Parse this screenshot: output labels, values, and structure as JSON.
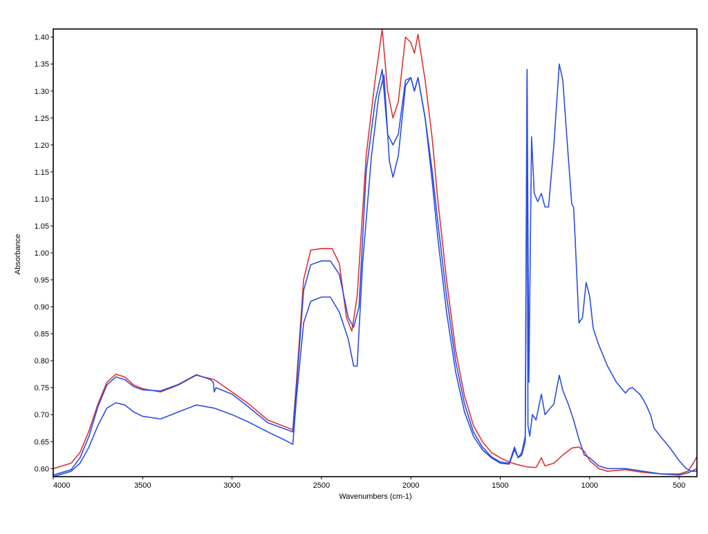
{
  "chart_data": {
    "type": "line",
    "xlabel": "Wavenumbers (cm-1)",
    "ylabel": "Absorbance",
    "xlim": [
      4000,
      400
    ],
    "ylim": [
      0.585,
      1.415
    ],
    "x_reversed": true,
    "x_ticks": [
      4000,
      3500,
      3000,
      2500,
      2000,
      1500,
      1000,
      500
    ],
    "y_ticks": [
      0.6,
      0.65,
      0.7,
      0.75,
      0.8,
      0.85,
      0.9,
      0.95,
      1.0,
      1.05,
      1.1,
      1.15,
      1.2,
      1.25,
      1.3,
      1.35,
      1.4
    ],
    "x_tick_labels": [
      "4000",
      "3500",
      "3000",
      "2500",
      "2000",
      "1500",
      "1000",
      "500"
    ],
    "y_tick_labels": [
      "0.60",
      "0.65",
      "0.70",
      "0.75",
      "0.80",
      "0.85",
      "0.90",
      "0.95",
      "1.00",
      "1.05",
      "1.10",
      "1.15",
      "1.20",
      "1.25",
      "1.30",
      "1.35",
      "1.40"
    ],
    "grid": false,
    "legend": "none",
    "series": [
      {
        "color": "#e03030",
        "points": [
          [
            4000,
            0.6
          ],
          [
            3900,
            0.61
          ],
          [
            3850,
            0.63
          ],
          [
            3800,
            0.67
          ],
          [
            3750,
            0.72
          ],
          [
            3700,
            0.76
          ],
          [
            3650,
            0.775
          ],
          [
            3600,
            0.77
          ],
          [
            3550,
            0.755
          ],
          [
            3500,
            0.748
          ],
          [
            3400,
            0.742
          ],
          [
            3300,
            0.755
          ],
          [
            3200,
            0.773
          ],
          [
            3100,
            0.765
          ],
          [
            3000,
            0.742
          ],
          [
            2900,
            0.718
          ],
          [
            2800,
            0.69
          ],
          [
            2660,
            0.672
          ],
          [
            2640,
            0.76
          ],
          [
            2600,
            0.95
          ],
          [
            2560,
            1.005
          ],
          [
            2500,
            1.008
          ],
          [
            2440,
            1.008
          ],
          [
            2400,
            0.98
          ],
          [
            2360,
            0.88
          ],
          [
            2330,
            0.855
          ],
          [
            2300,
            0.92
          ],
          [
            2250,
            1.18
          ],
          [
            2200,
            1.32
          ],
          [
            2160,
            1.415
          ],
          [
            2130,
            1.3
          ],
          [
            2100,
            1.25
          ],
          [
            2070,
            1.28
          ],
          [
            2030,
            1.4
          ],
          [
            2000,
            1.39
          ],
          [
            1980,
            1.37
          ],
          [
            1960,
            1.405
          ],
          [
            1920,
            1.32
          ],
          [
            1880,
            1.21
          ],
          [
            1850,
            1.1
          ],
          [
            1800,
            0.95
          ],
          [
            1750,
            0.82
          ],
          [
            1700,
            0.735
          ],
          [
            1650,
            0.68
          ],
          [
            1600,
            0.65
          ],
          [
            1550,
            0.63
          ],
          [
            1500,
            0.62
          ],
          [
            1450,
            0.612
          ],
          [
            1400,
            0.607
          ],
          [
            1350,
            0.603
          ],
          [
            1300,
            0.602
          ],
          [
            1270,
            0.62
          ],
          [
            1250,
            0.605
          ],
          [
            1200,
            0.61
          ],
          [
            1150,
            0.625
          ],
          [
            1100,
            0.638
          ],
          [
            1060,
            0.64
          ],
          [
            1030,
            0.632
          ],
          [
            1000,
            0.615
          ],
          [
            950,
            0.6
          ],
          [
            900,
            0.595
          ],
          [
            800,
            0.598
          ],
          [
            700,
            0.593
          ],
          [
            600,
            0.59
          ],
          [
            500,
            0.59
          ],
          [
            450,
            0.595
          ],
          [
            420,
            0.61
          ],
          [
            400,
            0.622
          ]
        ]
      },
      {
        "color": "#2b4ce0",
        "points": [
          [
            4000,
            0.588
          ],
          [
            3900,
            0.598
          ],
          [
            3850,
            0.62
          ],
          [
            3800,
            0.66
          ],
          [
            3750,
            0.715
          ],
          [
            3700,
            0.755
          ],
          [
            3650,
            0.77
          ],
          [
            3600,
            0.765
          ],
          [
            3550,
            0.752
          ],
          [
            3500,
            0.746
          ],
          [
            3400,
            0.744
          ],
          [
            3300,
            0.756
          ],
          [
            3200,
            0.774
          ],
          [
            3120,
            0.765
          ],
          [
            3105,
            0.76
          ],
          [
            3100,
            0.742
          ],
          [
            3090,
            0.75
          ],
          [
            3000,
            0.738
          ],
          [
            2900,
            0.712
          ],
          [
            2800,
            0.685
          ],
          [
            2660,
            0.668
          ],
          [
            2640,
            0.75
          ],
          [
            2600,
            0.93
          ],
          [
            2560,
            0.978
          ],
          [
            2500,
            0.985
          ],
          [
            2450,
            0.985
          ],
          [
            2400,
            0.96
          ],
          [
            2350,
            0.88
          ],
          [
            2320,
            0.862
          ],
          [
            2290,
            0.9
          ],
          [
            2250,
            1.15
          ],
          [
            2200,
            1.28
          ],
          [
            2160,
            1.34
          ],
          [
            2130,
            1.22
          ],
          [
            2100,
            1.2
          ],
          [
            2070,
            1.22
          ],
          [
            2030,
            1.32
          ],
          [
            2000,
            1.325
          ],
          [
            1980,
            1.3
          ],
          [
            1960,
            1.325
          ],
          [
            1920,
            1.25
          ],
          [
            1880,
            1.15
          ],
          [
            1850,
            1.06
          ],
          [
            1800,
            0.92
          ],
          [
            1750,
            0.8
          ],
          [
            1700,
            0.72
          ],
          [
            1650,
            0.668
          ],
          [
            1600,
            0.64
          ],
          [
            1550,
            0.622
          ],
          [
            1500,
            0.612
          ],
          [
            1450,
            0.61
          ],
          [
            1420,
            0.64
          ],
          [
            1400,
            0.62
          ],
          [
            1380,
            0.625
          ],
          [
            1360,
            0.65
          ],
          [
            1350,
            1.34
          ],
          [
            1345,
            0.68
          ],
          [
            1335,
            0.66
          ],
          [
            1320,
            0.7
          ],
          [
            1300,
            0.69
          ],
          [
            1270,
            0.738
          ],
          [
            1250,
            0.7
          ],
          [
            1200,
            0.72
          ],
          [
            1170,
            0.773
          ],
          [
            1150,
            0.745
          ],
          [
            1120,
            0.72
          ],
          [
            1090,
            0.69
          ],
          [
            1060,
            0.655
          ],
          [
            1030,
            0.625
          ],
          [
            1000,
            0.62
          ],
          [
            950,
            0.605
          ],
          [
            900,
            0.6
          ],
          [
            800,
            0.6
          ],
          [
            700,
            0.595
          ],
          [
            600,
            0.59
          ],
          [
            500,
            0.588
          ],
          [
            450,
            0.592
          ],
          [
            400,
            0.6
          ]
        ]
      },
      {
        "color": "#2b4ce0",
        "points": [
          [
            4000,
            0.585
          ],
          [
            3900,
            0.595
          ],
          [
            3850,
            0.61
          ],
          [
            3800,
            0.64
          ],
          [
            3750,
            0.68
          ],
          [
            3700,
            0.712
          ],
          [
            3650,
            0.722
          ],
          [
            3600,
            0.718
          ],
          [
            3550,
            0.705
          ],
          [
            3500,
            0.697
          ],
          [
            3400,
            0.692
          ],
          [
            3300,
            0.705
          ],
          [
            3200,
            0.718
          ],
          [
            3100,
            0.712
          ],
          [
            3000,
            0.7
          ],
          [
            2900,
            0.685
          ],
          [
            2800,
            0.668
          ],
          [
            2700,
            0.652
          ],
          [
            2660,
            0.645
          ],
          [
            2640,
            0.73
          ],
          [
            2600,
            0.87
          ],
          [
            2560,
            0.91
          ],
          [
            2500,
            0.918
          ],
          [
            2450,
            0.918
          ],
          [
            2400,
            0.89
          ],
          [
            2350,
            0.84
          ],
          [
            2320,
            0.79
          ],
          [
            2300,
            0.79
          ],
          [
            2270,
            0.98
          ],
          [
            2220,
            1.18
          ],
          [
            2180,
            1.29
          ],
          [
            2150,
            1.33
          ],
          [
            2120,
            1.17
          ],
          [
            2100,
            1.14
          ],
          [
            2070,
            1.18
          ],
          [
            2030,
            1.31
          ],
          [
            2000,
            1.325
          ],
          [
            1980,
            1.3
          ],
          [
            1960,
            1.325
          ],
          [
            1920,
            1.25
          ],
          [
            1880,
            1.13
          ],
          [
            1850,
            1.03
          ],
          [
            1800,
            0.89
          ],
          [
            1750,
            0.78
          ],
          [
            1700,
            0.705
          ],
          [
            1650,
            0.66
          ],
          [
            1600,
            0.635
          ],
          [
            1550,
            0.62
          ],
          [
            1500,
            0.61
          ],
          [
            1450,
            0.608
          ],
          [
            1420,
            0.635
          ],
          [
            1400,
            0.62
          ],
          [
            1380,
            0.63
          ],
          [
            1360,
            0.66
          ],
          [
            1350,
            1.34
          ],
          [
            1340,
            0.76
          ],
          [
            1325,
            1.215
          ],
          [
            1310,
            1.11
          ],
          [
            1290,
            1.095
          ],
          [
            1270,
            1.11
          ],
          [
            1250,
            1.085
          ],
          [
            1230,
            1.085
          ],
          [
            1200,
            1.2
          ],
          [
            1170,
            1.35
          ],
          [
            1150,
            1.32
          ],
          [
            1120,
            1.18
          ],
          [
            1100,
            1.09
          ],
          [
            1090,
            1.085
          ],
          [
            1080,
            1.02
          ],
          [
            1060,
            0.87
          ],
          [
            1040,
            0.88
          ],
          [
            1020,
            0.945
          ],
          [
            1000,
            0.92
          ],
          [
            980,
            0.86
          ],
          [
            950,
            0.83
          ],
          [
            900,
            0.79
          ],
          [
            850,
            0.76
          ],
          [
            800,
            0.74
          ],
          [
            780,
            0.748
          ],
          [
            760,
            0.75
          ],
          [
            720,
            0.738
          ],
          [
            700,
            0.728
          ],
          [
            680,
            0.715
          ],
          [
            660,
            0.7
          ],
          [
            640,
            0.675
          ],
          [
            600,
            0.658
          ],
          [
            550,
            0.638
          ],
          [
            500,
            0.615
          ],
          [
            460,
            0.6
          ],
          [
            430,
            0.595
          ],
          [
            400,
            0.595
          ]
        ]
      }
    ]
  }
}
